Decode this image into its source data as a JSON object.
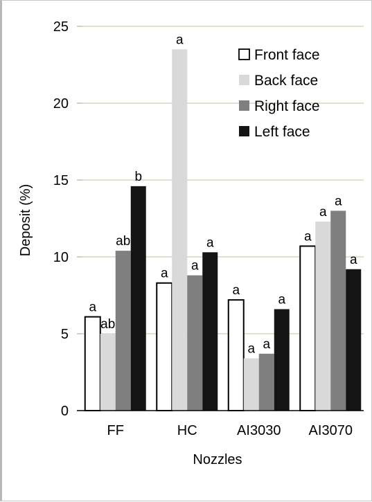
{
  "chart_data": {
    "type": "bar",
    "title": "",
    "xlabel": "Nozzles",
    "ylabel": "Deposit (%)",
    "ylim": [
      0,
      25
    ],
    "yticks": [
      "0",
      "5",
      "10",
      "15",
      "20",
      "25"
    ],
    "grid": true,
    "legend_position": "top-right",
    "categories": [
      "FF",
      "HC",
      "AI3030",
      "AI3070"
    ],
    "series": [
      {
        "name": "Front face",
        "color": "#ffffff",
        "values": [
          6.1,
          8.3,
          7.2,
          10.7
        ],
        "letters": [
          "a",
          "a",
          "a",
          "a"
        ]
      },
      {
        "name": "Back face",
        "color": "#d9d9d9",
        "values": [
          5.0,
          23.5,
          3.4,
          12.3
        ],
        "letters": [
          "ab",
          "a",
          "a",
          "a"
        ]
      },
      {
        "name": "Right face",
        "color": "#7f7f7f",
        "values": [
          10.4,
          8.8,
          3.7,
          13.0
        ],
        "letters": [
          "ab",
          "a",
          "a",
          "a"
        ]
      },
      {
        "name": "Left face",
        "color": "#141414",
        "values": [
          14.6,
          10.3,
          6.6,
          9.2
        ],
        "letters": [
          "b",
          "a",
          "a",
          "a"
        ]
      }
    ]
  }
}
